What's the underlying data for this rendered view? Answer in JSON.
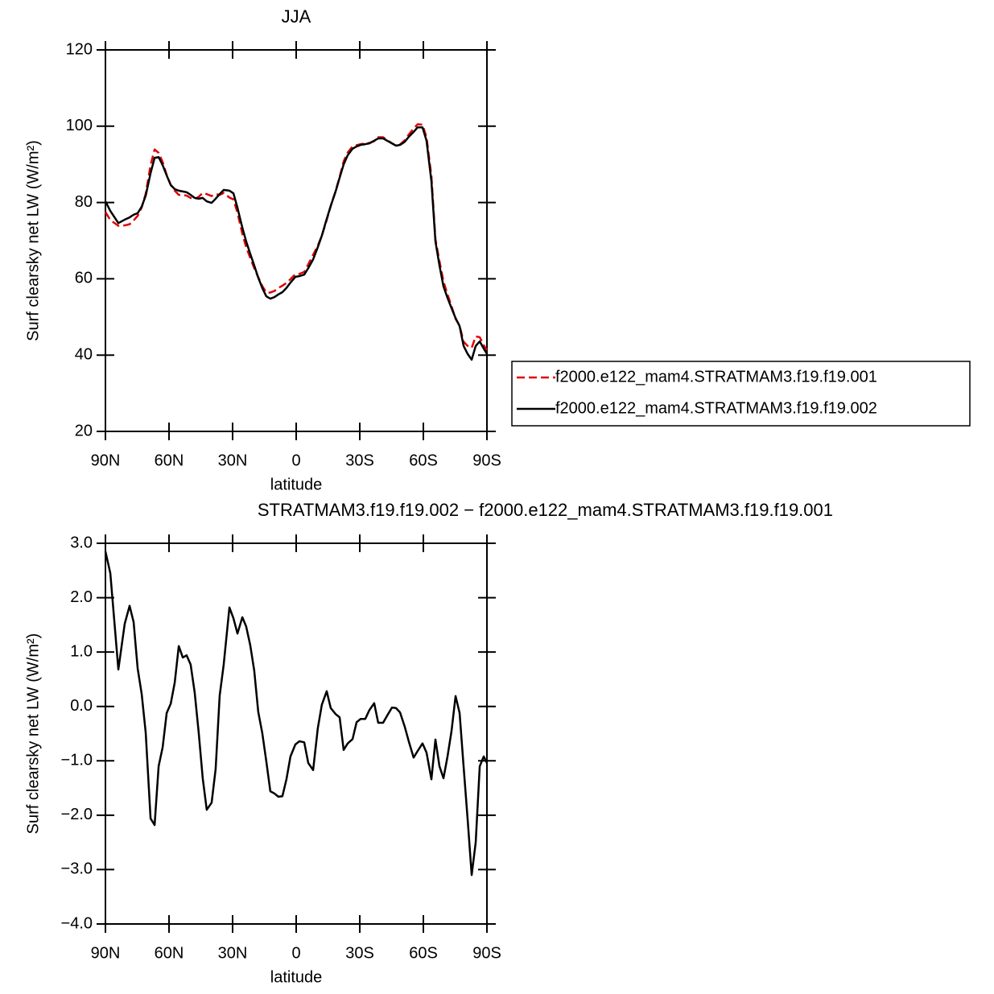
{
  "chart_data": [
    {
      "type": "line",
      "title": "JJA",
      "xlabel": "latitude",
      "ylabel": "Surf clearsky net LW (W/m²)",
      "x": [
        90,
        87.7,
        83.9,
        80.9,
        78.6,
        76.7,
        74.8,
        72.9,
        71.0,
        68.7,
        66.8,
        64.9,
        63.0,
        61.1,
        59.2,
        57.3,
        55.4,
        53.5,
        51.7,
        49.8,
        47.9,
        46.0,
        44.1,
        42.2,
        39.9,
        38.0,
        36.1,
        34.2,
        31.5,
        29.6,
        27.7,
        25.4,
        23.6,
        21.7,
        19.8,
        17.9,
        16.0,
        14.1,
        12.2,
        10.3,
        8.4,
        6.5,
        4.6,
        2.7,
        0.4,
        -1.5,
        -3.8,
        -5.7,
        -8.0,
        -10.2,
        -12.1,
        -14.4,
        -16.3,
        -18.6,
        -20.5,
        -22.4,
        -24.3,
        -26.6,
        -28.5,
        -30.4,
        -32.6,
        -34.5,
        -36.8,
        -38.7,
        -41.0,
        -42.9,
        -45.2,
        -47.1,
        -49.0,
        -51.2,
        -53.1,
        -55.4,
        -57.3,
        -59.6,
        -61.5,
        -63.8,
        -65.7,
        -67.6,
        -69.5,
        -71.4,
        -73.3,
        -75.2,
        -77.1,
        -79.0,
        -80.9,
        -82.8,
        -84.7,
        -86.6,
        -88.5,
        -90.0
      ],
      "series": [
        {
          "name": "f2000.e122_mam4.STRATMAM3.f19.f19.001",
          "color": "#e00000",
          "dashed": true,
          "values": [
            77.5,
            75.4,
            73.9,
            74.0,
            74.3,
            75.3,
            76.5,
            78.7,
            82.3,
            89.8,
            93.9,
            93.0,
            90.6,
            87.2,
            84.6,
            83.1,
            82.0,
            82.0,
            81.8,
            81.2,
            80.9,
            81.5,
            82.5,
            82.2,
            81.7,
            82.2,
            82.0,
            82.5,
            81.3,
            80.8,
            77.3,
            71.8,
            68.3,
            65.5,
            62.8,
            60.4,
            58.1,
            56.4,
            56.4,
            56.8,
            57.6,
            58.2,
            58.9,
            59.9,
            61.2,
            61.3,
            61.8,
            63.8,
            66.3,
            68.7,
            71.3,
            75.4,
            79.1,
            83.0,
            86.7,
            90.8,
            93.1,
            94.7,
            95.0,
            95.3,
            95.5,
            95.6,
            96.1,
            97.1,
            97.1,
            96.4,
            95.5,
            94.9,
            95.2,
            96.3,
            97.8,
            99.4,
            100.5,
            100.4,
            97.1,
            86.9,
            70.4,
            64.6,
            59.3,
            55.9,
            52.8,
            49.5,
            47.7,
            43.5,
            42.4,
            41.9,
            44.9,
            44.7,
            42.6,
            41.3
          ]
        },
        {
          "name": "f2000.e122_mam4.STRATMAM3.f19.f19.002",
          "color": "#000000",
          "dashed": false,
          "values": [
            80.3,
            77.8,
            74.6,
            75.5,
            76.1,
            76.8,
            77.2,
            78.9,
            81.8,
            87.7,
            91.7,
            91.9,
            89.8,
            87.1,
            84.6,
            83.5,
            83.1,
            82.9,
            82.7,
            82.0,
            81.2,
            81.0,
            81.2,
            80.3,
            79.9,
            81.0,
            82.2,
            83.3,
            83.1,
            82.4,
            78.6,
            73.4,
            69.8,
            66.6,
            63.5,
            60.3,
            57.6,
            55.4,
            54.8,
            55.2,
            55.9,
            56.5,
            57.6,
            59.0,
            60.5,
            60.7,
            61.1,
            62.8,
            65.1,
            68.3,
            71.3,
            75.7,
            79.1,
            82.9,
            86.5,
            90.0,
            92.4,
            94.1,
            94.7,
            95.1,
            95.3,
            95.5,
            96.2,
            96.8,
            96.8,
            96.2,
            95.5,
            94.9,
            95.1,
            95.9,
            97.2,
            98.5,
            99.7,
            99.7,
            96.2,
            85.6,
            69.8,
            63.5,
            58.0,
            55.0,
            52.3,
            49.7,
            47.6,
            42.4,
            40.3,
            38.8,
            42.4,
            43.6,
            41.7,
            40.3
          ]
        }
      ],
      "xlim": [
        90,
        -90
      ],
      "xticks": [
        {
          "value": 90,
          "label": "90N"
        },
        {
          "value": 60,
          "label": "60N"
        },
        {
          "value": 30,
          "label": "30N"
        },
        0,
        {
          "value": -30,
          "label": "30S"
        },
        {
          "value": -60,
          "label": "60S"
        },
        {
          "value": -90,
          "label": "90S"
        }
      ],
      "ylim": [
        20,
        120
      ],
      "yticks": [
        20,
        40,
        60,
        80,
        100,
        120
      ],
      "legend": "right"
    },
    {
      "type": "line",
      "title": "STRATMAM3.f19.f19.002 − f2000.e122_mam4.STRATMAM3.f19.f19.001",
      "xlabel": "latitude",
      "ylabel": "Surf clearsky net LW (W/m²)",
      "x": [
        90,
        87.7,
        83.9,
        80.9,
        78.6,
        76.7,
        74.8,
        72.9,
        71.0,
        68.7,
        66.8,
        64.9,
        63.0,
        61.1,
        59.2,
        57.3,
        55.4,
        53.5,
        51.7,
        49.8,
        47.9,
        46.0,
        44.1,
        42.2,
        39.9,
        38.0,
        36.1,
        34.2,
        31.5,
        29.6,
        27.7,
        25.4,
        23.6,
        21.7,
        19.8,
        17.9,
        16.0,
        14.1,
        12.2,
        10.3,
        8.4,
        6.5,
        4.6,
        2.7,
        0.4,
        -1.5,
        -3.8,
        -5.7,
        -8.0,
        -10.2,
        -12.1,
        -14.4,
        -16.3,
        -18.6,
        -20.5,
        -22.4,
        -24.3,
        -26.6,
        -28.5,
        -30.4,
        -32.6,
        -34.5,
        -36.8,
        -38.7,
        -41.0,
        -42.9,
        -45.2,
        -47.1,
        -49.0,
        -51.2,
        -53.1,
        -55.4,
        -57.3,
        -59.6,
        -61.5,
        -63.8,
        -65.7,
        -67.6,
        -69.5,
        -71.4,
        -73.3,
        -75.2,
        -77.1,
        -79.0,
        -80.9,
        -82.8,
        -84.7,
        -86.6,
        -88.5,
        -90.0
      ],
      "series": [
        {
          "color": "#000000",
          "dashed": false,
          "values": [
            2.85,
            2.45,
            0.68,
            1.52,
            1.85,
            1.55,
            0.7,
            0.23,
            -0.48,
            -2.06,
            -2.18,
            -1.1,
            -0.75,
            -0.12,
            0.05,
            0.44,
            1.11,
            0.9,
            0.94,
            0.77,
            0.26,
            -0.48,
            -1.32,
            -1.9,
            -1.77,
            -1.15,
            0.2,
            0.77,
            1.82,
            1.62,
            1.34,
            1.64,
            1.47,
            1.13,
            0.66,
            -0.1,
            -0.49,
            -1.01,
            -1.56,
            -1.6,
            -1.66,
            -1.65,
            -1.34,
            -0.92,
            -0.7,
            -0.64,
            -0.66,
            -1.04,
            -1.17,
            -0.4,
            0.03,
            0.28,
            -0.03,
            -0.14,
            -0.2,
            -0.8,
            -0.68,
            -0.6,
            -0.29,
            -0.23,
            -0.23,
            -0.07,
            0.06,
            -0.3,
            -0.3,
            -0.17,
            -0.02,
            -0.03,
            -0.11,
            -0.37,
            -0.64,
            -0.94,
            -0.82,
            -0.68,
            -0.85,
            -1.34,
            -0.61,
            -1.1,
            -1.32,
            -0.92,
            -0.45,
            0.19,
            -0.12,
            -1.11,
            -2.08,
            -3.1,
            -2.5,
            -1.1,
            -0.92,
            -1.04
          ]
        }
      ],
      "xlim": [
        90,
        -90
      ],
      "xticks": [
        {
          "value": 90,
          "label": "90N"
        },
        {
          "value": 60,
          "label": "60N"
        },
        {
          "value": 30,
          "label": "30N"
        },
        0,
        {
          "value": -30,
          "label": "30S"
        },
        {
          "value": -60,
          "label": "60S"
        },
        {
          "value": -90,
          "label": "90S"
        }
      ],
      "ylim": [
        -4,
        3
      ],
      "yticks": [
        {
          "value": -4,
          "label": "−4.0"
        },
        {
          "value": -3,
          "label": "−3.0"
        },
        {
          "value": -2,
          "label": "−2.0"
        },
        {
          "value": -1,
          "label": "−1.0"
        },
        {
          "value": 0,
          "label": "0.0"
        },
        {
          "value": 1,
          "label": "1.0"
        },
        {
          "value": 2,
          "label": "2.0"
        },
        {
          "value": 3,
          "label": "3.0"
        }
      ]
    }
  ]
}
